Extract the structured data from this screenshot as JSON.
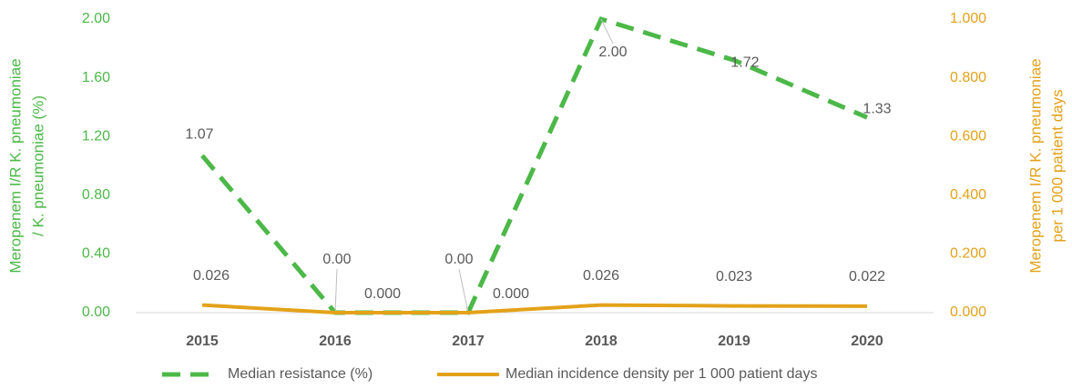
{
  "chart_data": {
    "type": "line",
    "ylabel": [
      "Meropenem I/R K. pneumoniae",
      "/ K. pneumoniae (%)"
    ],
    "y2label": [
      "Meropenem I/R K. pneumoniae",
      "per 1 000 patient days"
    ],
    "categories": [
      "2015",
      "2016",
      "2017",
      "2018",
      "2019",
      "2020"
    ],
    "series": [
      {
        "name": "Median resistance (%)",
        "color": "#4cb848",
        "dashed": true,
        "values": [
          1.07,
          0,
          0,
          2,
          1.72,
          1.33
        ],
        "value_labels": [
          "1.07",
          "0.00",
          "0.00",
          "2.00",
          "1.72",
          "1.33"
        ]
      },
      {
        "name": "Median incidence density per 1 000 patient days",
        "color": "#e3a21a",
        "axis": "y2",
        "values": [
          0.026,
          0,
          0,
          0.026,
          0.023,
          0.022
        ],
        "value_labels": [
          "0.026",
          "0.000",
          "0.000",
          "0.026",
          "0.023",
          "0.022"
        ]
      }
    ],
    "ylim": [
      0,
      2
    ],
    "yticks": [
      {
        "value": 0,
        "label": "0.00"
      },
      {
        "value": 0.4,
        "label": "0.40"
      },
      {
        "value": 0.8,
        "label": "0.80"
      },
      {
        "value": 1.2,
        "label": "1.20"
      },
      {
        "value": 1.6,
        "label": "1.60"
      },
      {
        "value": 2,
        "label": "2.00"
      }
    ],
    "y2lim": [
      0,
      1
    ],
    "y2ticks": [
      {
        "value": 0,
        "label": "0.000"
      },
      {
        "value": 0.2,
        "label": "0.200"
      },
      {
        "value": 0.4,
        "label": "0.400"
      },
      {
        "value": 0.6,
        "label": "0.600"
      },
      {
        "value": 0.8,
        "label": "0.800"
      },
      {
        "value": 1,
        "label": "1.000"
      }
    ],
    "legend": "bottom"
  }
}
